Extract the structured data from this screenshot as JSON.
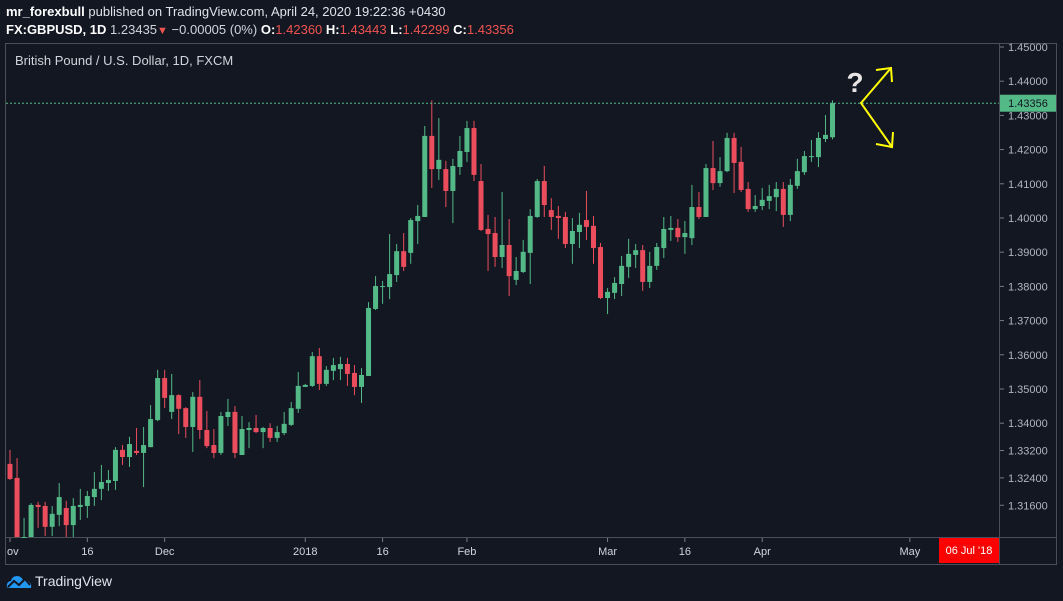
{
  "header": {
    "author": "mr_forexbull",
    "published_text": "published on TradingView.com, April 24, 2020 19:22:36 +0430",
    "symbol": "FX:GBPUSD, 1D",
    "last": "1.23435",
    "change": "−0.00005 (0%)",
    "o_label": "O:",
    "o": "1.42360",
    "h_label": "H:",
    "h": "1.43443",
    "l_label": "L:",
    "l": "1.42299",
    "c_label": "C:",
    "c": "1.43356"
  },
  "legend": "British Pound / U.S. Dollar, 1D, FXCM",
  "watermark": "TradingView",
  "annotation": {
    "text": "?"
  },
  "colors": {
    "bg": "#131722",
    "up": "#53b987",
    "down": "#eb4d5c",
    "arrow": "#ffff00",
    "date_badge": "#ff0000"
  },
  "chart_data": {
    "type": "candlestick",
    "title": "British Pound / U.S. Dollar, 1D, FXCM",
    "ylim": [
      1.3067,
      1.4537
    ],
    "y_ticks": [
      "1.45000",
      "1.44000",
      "1.43000",
      "1.42000",
      "1.41000",
      "1.40000",
      "1.39000",
      "1.38000",
      "1.37000",
      "1.36000",
      "1.35000",
      "1.34000",
      "1.33200",
      "1.32400",
      "1.31600"
    ],
    "x_labels": [
      {
        "label": "ov",
        "index": 0
      },
      {
        "label": "16",
        "index": 11
      },
      {
        "label": "Dec",
        "index": 22
      },
      {
        "label": "2018",
        "index": 42
      },
      {
        "label": "16",
        "index": 53
      },
      {
        "label": "Feb",
        "index": 65
      },
      {
        "label": "Mar",
        "index": 85
      },
      {
        "label": "16",
        "index": 96
      },
      {
        "label": "Apr",
        "index": 107
      },
      {
        "label": "May",
        "index": 128
      }
    ],
    "last_price": "1.43356",
    "date_badge": "06 Jul '18",
    "ohlc": [
      [
        1.3281,
        1.3322,
        1.3234,
        1.3237
      ],
      [
        1.324,
        1.3298,
        1.304,
        1.305
      ],
      [
        1.304,
        1.3123,
        1.303,
        1.306
      ],
      [
        1.306,
        1.3166,
        1.305,
        1.3161
      ],
      [
        1.3161,
        1.317,
        1.3094,
        1.3155
      ],
      [
        1.3158,
        1.317,
        1.307,
        1.3097
      ],
      [
        1.3097,
        1.3158,
        1.307,
        1.3135
      ],
      [
        1.3132,
        1.3225,
        1.3099,
        1.3184
      ],
      [
        1.3152,
        1.3173,
        1.3067,
        1.3102
      ],
      [
        1.3102,
        1.3181,
        1.3067,
        1.3158
      ],
      [
        1.3155,
        1.3208,
        1.3117,
        1.3161
      ],
      [
        1.3158,
        1.3202,
        1.3123,
        1.3187
      ],
      [
        1.3184,
        1.3257,
        1.3158,
        1.3208
      ],
      [
        1.3208,
        1.3278,
        1.3175,
        1.3228
      ],
      [
        1.3225,
        1.3263,
        1.3202,
        1.3234
      ],
      [
        1.3231,
        1.333,
        1.3205,
        1.3322
      ],
      [
        1.3322,
        1.3336,
        1.3278,
        1.3301
      ],
      [
        1.3301,
        1.336,
        1.3272,
        1.3339
      ],
      [
        1.3319,
        1.3386,
        1.3307,
        1.3313
      ],
      [
        1.3313,
        1.3389,
        1.3213,
        1.3336
      ],
      [
        1.333,
        1.3453,
        1.333,
        1.3412
      ],
      [
        1.3409,
        1.3556,
        1.3406,
        1.3532
      ],
      [
        1.3532,
        1.3556,
        1.3444,
        1.3474
      ],
      [
        1.3433,
        1.3544,
        1.3412,
        1.3482
      ],
      [
        1.3482,
        1.3485,
        1.3368,
        1.3442
      ],
      [
        1.3444,
        1.3447,
        1.3357,
        1.3389
      ],
      [
        1.3389,
        1.3491,
        1.3316,
        1.3477
      ],
      [
        1.3477,
        1.3526,
        1.3354,
        1.338
      ],
      [
        1.338,
        1.3436,
        1.3327,
        1.3333
      ],
      [
        1.3336,
        1.3383,
        1.3298,
        1.3313
      ],
      [
        1.3313,
        1.3433,
        1.3307,
        1.3421
      ],
      [
        1.3418,
        1.3471,
        1.3392,
        1.3433
      ],
      [
        1.3433,
        1.345,
        1.3298,
        1.3313
      ],
      [
        1.3307,
        1.3421,
        1.3307,
        1.3383
      ],
      [
        1.338,
        1.3403,
        1.3327,
        1.3386
      ],
      [
        1.3386,
        1.3424,
        1.3371,
        1.3374
      ],
      [
        1.3374,
        1.3389,
        1.3327,
        1.3386
      ],
      [
        1.3386,
        1.34,
        1.3345,
        1.3357
      ],
      [
        1.3357,
        1.3392,
        1.3345,
        1.3374
      ],
      [
        1.3371,
        1.3433,
        1.3365,
        1.3398
      ],
      [
        1.3395,
        1.3462,
        1.3392,
        1.3444
      ],
      [
        1.3442,
        1.355,
        1.343,
        1.3509
      ],
      [
        1.3506,
        1.3515,
        1.3506,
        1.3512
      ],
      [
        1.3509,
        1.3608,
        1.3506,
        1.3596
      ],
      [
        1.3596,
        1.362,
        1.3497,
        1.3515
      ],
      [
        1.3515,
        1.3567,
        1.3509,
        1.3556
      ],
      [
        1.3553,
        1.3591,
        1.3526,
        1.357
      ],
      [
        1.3558,
        1.3594,
        1.3526,
        1.3573
      ],
      [
        1.3573,
        1.3591,
        1.3509,
        1.3544
      ],
      [
        1.3547,
        1.357,
        1.3482,
        1.3506
      ],
      [
        1.3506,
        1.3561,
        1.3459,
        1.3541
      ],
      [
        1.3538,
        1.3754,
        1.3538,
        1.3737
      ],
      [
        1.3734,
        1.383,
        1.3731,
        1.3801
      ],
      [
        1.3798,
        1.3816,
        1.3749,
        1.3801
      ],
      [
        1.3798,
        1.3953,
        1.3763,
        1.3836
      ],
      [
        1.3833,
        1.3924,
        1.3813,
        1.3903
      ],
      [
        1.3903,
        1.3956,
        1.3845,
        1.3857
      ],
      [
        1.3898,
        1.4,
        1.3866,
        1.3994
      ],
      [
        1.3991,
        1.4038,
        1.3924,
        1.4006
      ],
      [
        1.4003,
        1.4269,
        1.4003,
        1.424
      ],
      [
        1.424,
        1.4344,
        1.4088,
        1.4143
      ],
      [
        1.4143,
        1.4292,
        1.4111,
        1.417
      ],
      [
        1.4143,
        1.4167,
        1.4032,
        1.4079
      ],
      [
        1.4079,
        1.4173,
        1.3985,
        1.4152
      ],
      [
        1.4149,
        1.424,
        1.4126,
        1.4196
      ],
      [
        1.4193,
        1.4284,
        1.4164,
        1.4263
      ],
      [
        1.4263,
        1.4284,
        1.4108,
        1.4126
      ],
      [
        1.4108,
        1.4158,
        1.3962,
        1.3965
      ],
      [
        1.3968,
        1.4009,
        1.3845,
        1.3953
      ],
      [
        1.3956,
        1.4003,
        1.3857,
        1.3886
      ],
      [
        1.3886,
        1.4076,
        1.3854,
        1.3921
      ],
      [
        1.3921,
        1.3997,
        1.3772,
        1.383
      ],
      [
        1.3819,
        1.3886,
        1.3804,
        1.3845
      ],
      [
        1.3842,
        1.3936,
        1.3839,
        1.3901
      ],
      [
        1.3898,
        1.4026,
        1.3807,
        1.4006
      ],
      [
        1.4003,
        1.4114,
        1.4,
        1.4108
      ],
      [
        1.4108,
        1.4152,
        1.4003,
        1.4038
      ],
      [
        1.4023,
        1.4058,
        1.3965,
        1.4003
      ],
      [
        1.4006,
        1.4035,
        1.3939,
        1.4
      ],
      [
        1.4003,
        1.4018,
        1.3912,
        1.3924
      ],
      [
        1.3924,
        1.4,
        1.3866,
        1.3962
      ],
      [
        1.3959,
        1.4015,
        1.3912,
        1.398
      ],
      [
        1.3994,
        1.4079,
        1.3936,
        1.3974
      ],
      [
        1.3977,
        1.4006,
        1.3866,
        1.3912
      ],
      [
        1.3915,
        1.3927,
        1.3763,
        1.3766
      ],
      [
        1.3766,
        1.3795,
        1.3719,
        1.3784
      ],
      [
        1.3781,
        1.3827,
        1.3763,
        1.381
      ],
      [
        1.3807,
        1.3889,
        1.3772,
        1.386
      ],
      [
        1.3857,
        1.3939,
        1.3825,
        1.3895
      ],
      [
        1.3892,
        1.3924,
        1.3854,
        1.3906
      ],
      [
        1.3906,
        1.3921,
        1.3787,
        1.3813
      ],
      [
        1.3813,
        1.3901,
        1.3795,
        1.386
      ],
      [
        1.386,
        1.3927,
        1.3848,
        1.3915
      ],
      [
        1.3912,
        1.4003,
        1.3883,
        1.3968
      ],
      [
        1.3965,
        1.4006,
        1.3933,
        1.3971
      ],
      [
        1.3971,
        1.3997,
        1.393,
        1.3944
      ],
      [
        1.3944,
        1.3991,
        1.3895,
        1.3956
      ],
      [
        1.3941,
        1.4097,
        1.3921,
        1.4032
      ],
      [
        1.4032,
        1.4076,
        1.3997,
        1.4003
      ],
      [
        1.4003,
        1.4158,
        1.4003,
        1.4146
      ],
      [
        1.4146,
        1.4225,
        1.4082,
        1.4102
      ],
      [
        1.4102,
        1.4178,
        1.4091,
        1.4137
      ],
      [
        1.4137,
        1.4249,
        1.4134,
        1.4234
      ],
      [
        1.4234,
        1.4249,
        1.4073,
        1.4161
      ],
      [
        1.4164,
        1.4208,
        1.4076,
        1.4082
      ],
      [
        1.4085,
        1.4105,
        1.4018,
        1.4026
      ],
      [
        1.4026,
        1.4067,
        1.4018,
        1.4035
      ],
      [
        1.4035,
        1.4088,
        1.4023,
        1.4053
      ],
      [
        1.405,
        1.4097,
        1.4026,
        1.4064
      ],
      [
        1.4061,
        1.4105,
        1.402,
        1.4085
      ],
      [
        1.4085,
        1.4105,
        1.3974,
        1.4009
      ],
      [
        1.4009,
        1.4114,
        1.3991,
        1.4097
      ],
      [
        1.4094,
        1.4173,
        1.4085,
        1.4137
      ],
      [
        1.4134,
        1.4196,
        1.4126,
        1.4181
      ],
      [
        1.4178,
        1.4228,
        1.4164,
        1.4181
      ],
      [
        1.4178,
        1.4251,
        1.4149,
        1.4234
      ],
      [
        1.4231,
        1.4301,
        1.4222,
        1.4243
      ],
      [
        1.4236,
        1.4344,
        1.423,
        1.4336
      ]
    ]
  }
}
